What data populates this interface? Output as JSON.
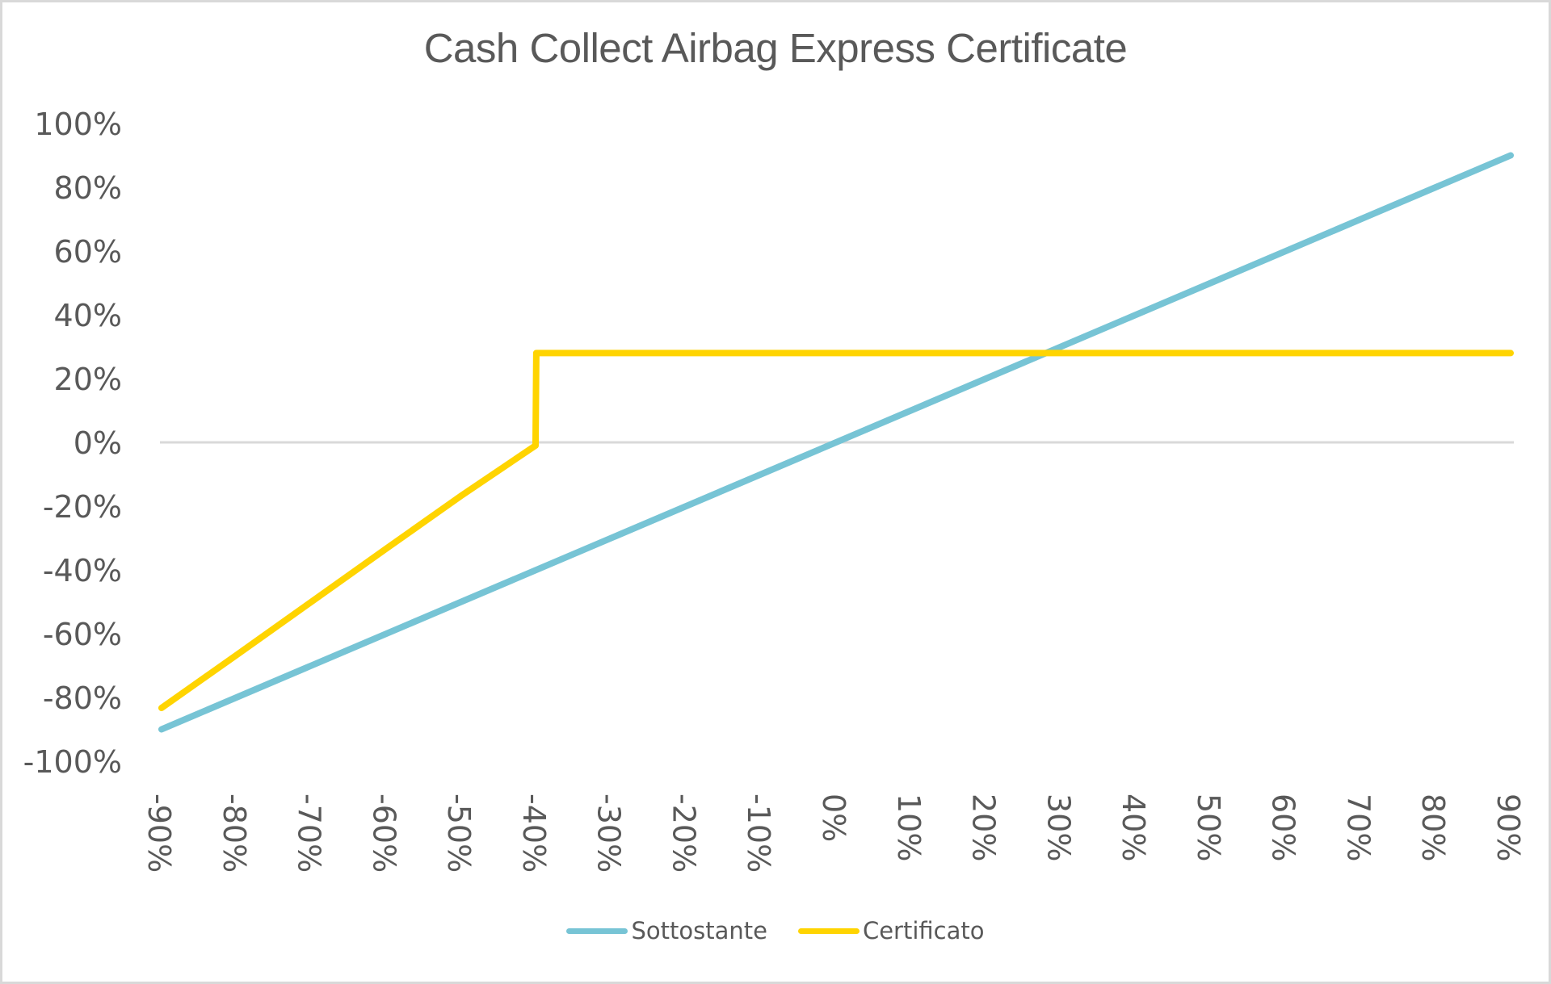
{
  "chart_data": {
    "type": "line",
    "title": "Cash Collect Airbag Express Certificate",
    "xlabel": "",
    "ylabel": "",
    "x": [
      -90,
      -80,
      -70,
      -60,
      -50,
      -40,
      -30,
      -20,
      -10,
      0,
      10,
      20,
      30,
      40,
      50,
      60,
      70,
      80,
      90
    ],
    "x_tick_labels": [
      "-90%",
      "-80%",
      "-70%",
      "-60%",
      "-50%",
      "-40%",
      "-30%",
      "-20%",
      "-10%",
      "0%",
      "10%",
      "20%",
      "30%",
      "40%",
      "50%",
      "60%",
      "70%",
      "80%",
      "90%"
    ],
    "y_tick_labels": [
      "100%",
      "80%",
      "60%",
      "40%",
      "20%",
      "0%",
      "-20%",
      "-40%",
      "-60%",
      "-80%",
      "-100%"
    ],
    "ylim": [
      -100,
      100
    ],
    "xlim": [
      -90,
      90
    ],
    "grid": "zero-line only",
    "legend_position": "bottom",
    "series": [
      {
        "name": "Sottostante",
        "color": "#77c4d5",
        "points": [
          [
            -90,
            -90
          ],
          [
            90,
            90
          ]
        ]
      },
      {
        "name": "Certificato",
        "color": "#ffd400",
        "points": [
          [
            -90,
            -83.3
          ],
          [
            -80,
            -66.7
          ],
          [
            -70,
            -50
          ],
          [
            -60,
            -33.3
          ],
          [
            -50,
            -16.7
          ],
          [
            -40.1,
            -1
          ],
          [
            -40,
            28
          ],
          [
            90,
            28
          ]
        ]
      }
    ]
  },
  "legend": {
    "items": [
      {
        "label": "Sottostante",
        "color": "#77c4d5"
      },
      {
        "label": "Certificato",
        "color": "#ffd400"
      }
    ]
  }
}
